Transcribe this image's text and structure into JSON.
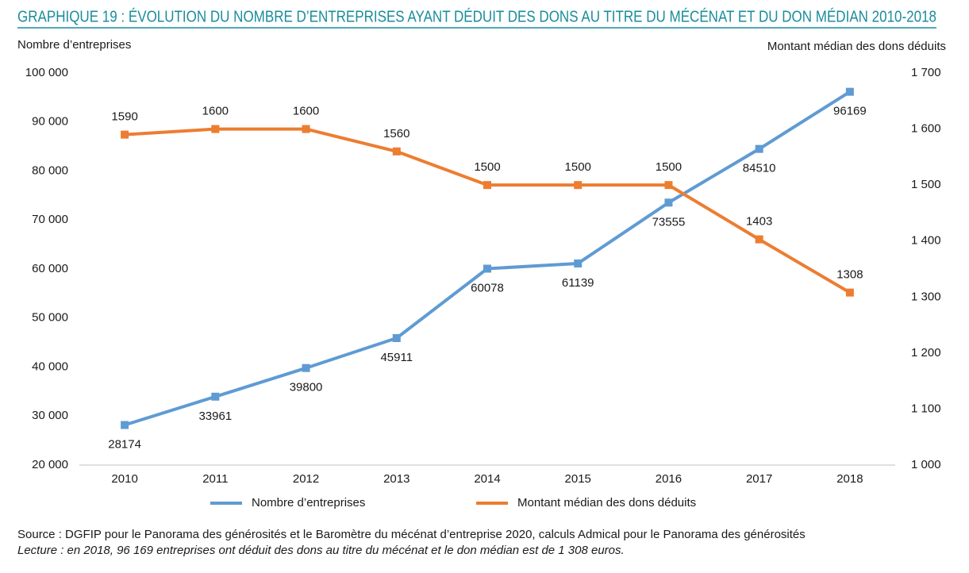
{
  "chart_data": {
    "type": "line",
    "title": "GRAPHIQUE 19 : ÉVOLUTION DU NOMBRE D’ENTREPRISES AYANT DÉDUIT DES DONS AU TITRE DU MÉCÉNAT ET DU DON MÉDIAN 2010-2018",
    "y_label": "Nombre d’entreprises",
    "y2_label": "Montant médian des dons déduits",
    "categories": [
      "2010",
      "2011",
      "2012",
      "2013",
      "2014",
      "2015",
      "2016",
      "2017",
      "2018"
    ],
    "series": [
      {
        "name": "Nombre d’entreprises",
        "color": "#5f9bd3",
        "values": [
          28174,
          33961,
          39800,
          45911,
          60078,
          61139,
          73555,
          84510,
          96169
        ]
      },
      {
        "name": "Montant médian des dons déduits",
        "color": "#ed7d31",
        "axis": "y2",
        "values": [
          1590,
          1600,
          1600,
          1560,
          1500,
          1500,
          1500,
          1403,
          1308
        ]
      }
    ],
    "ylim": [
      20000,
      100000
    ],
    "yticks": [
      {
        "value": 20000,
        "label": "20 000"
      },
      {
        "value": 30000,
        "label": "30 000"
      },
      {
        "value": 40000,
        "label": "40 000"
      },
      {
        "value": 50000,
        "label": "50 000"
      },
      {
        "value": 60000,
        "label": "60 000"
      },
      {
        "value": 70000,
        "label": "70 000"
      },
      {
        "value": 80000,
        "label": "80 000"
      },
      {
        "value": 90000,
        "label": "90 000"
      },
      {
        "value": 100000,
        "label": "100 000"
      }
    ],
    "y2lim": [
      1000,
      1700
    ],
    "y2ticks": [
      {
        "value": 1000,
        "label": "1 000"
      },
      {
        "value": 1100,
        "label": "1 100"
      },
      {
        "value": 1200,
        "label": "1 200"
      },
      {
        "value": 1300,
        "label": "1 300"
      },
      {
        "value": 1400,
        "label": "1 400"
      },
      {
        "value": 1500,
        "label": "1 500"
      },
      {
        "value": 1600,
        "label": "1 600"
      },
      {
        "value": 1700,
        "label": "1 700"
      }
    ],
    "grid": false,
    "source": "Source : DGFIP pour le Panorama des générosités et le Baromètre du mécénat d’entreprise 2020, calculs Admical pour le Panorama des générosités",
    "note": "Lecture : en 2018, 96 169 entreprises ont déduit des dons au titre du mécénat et le don médian est de 1 308 euros."
  }
}
